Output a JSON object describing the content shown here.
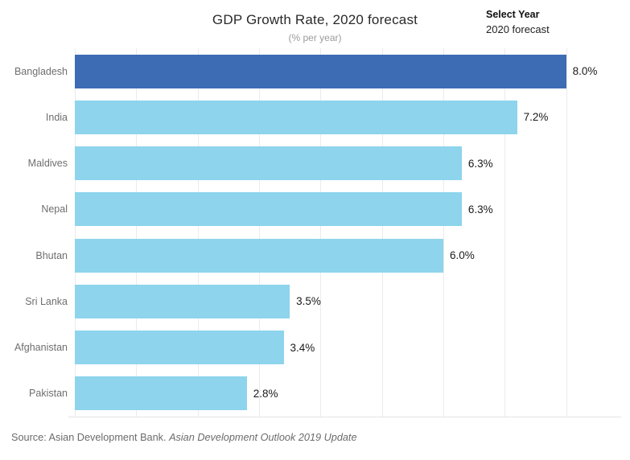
{
  "header": {
    "title": "GDP Growth Rate, 2020 forecast",
    "subtitle": "(% per year)"
  },
  "controls": {
    "select_year_label": "Select Year",
    "select_year_value": "2020 forecast"
  },
  "footer": {
    "source_prefix": "Source: Asian Development Bank. ",
    "source_italic": "Asian Development Outlook 2019 Update"
  },
  "chart_data": {
    "type": "bar",
    "orientation": "horizontal",
    "title": "GDP Growth Rate, 2020 forecast",
    "subtitle": "(% per year)",
    "categories": [
      "Bangladesh",
      "India",
      "Maldives",
      "Nepal",
      "Bhutan",
      "Sri Lanka",
      "Afghanistan",
      "Pakistan"
    ],
    "values": [
      8.0,
      7.2,
      6.3,
      6.3,
      6.0,
      3.5,
      3.4,
      2.8
    ],
    "value_labels": [
      "8.0%",
      "7.2%",
      "6.3%",
      "6.3%",
      "6.0%",
      "3.5%",
      "3.4%",
      "2.8%"
    ],
    "highlighted_category": "Bangladesh",
    "xlim": [
      0,
      9
    ],
    "gridlines_at": [
      0,
      1,
      2,
      3,
      4,
      5,
      6,
      7,
      8
    ],
    "grid": "vertical-only",
    "legend": "none",
    "colors": {
      "bar": "#8dd4ec",
      "bar_highlight": "#3d6cb4",
      "gridline": "#ebebeb",
      "axis_line": "#e3e3e3",
      "category_label": "#6e6e6e",
      "value_label": "#1a1a1a"
    }
  }
}
